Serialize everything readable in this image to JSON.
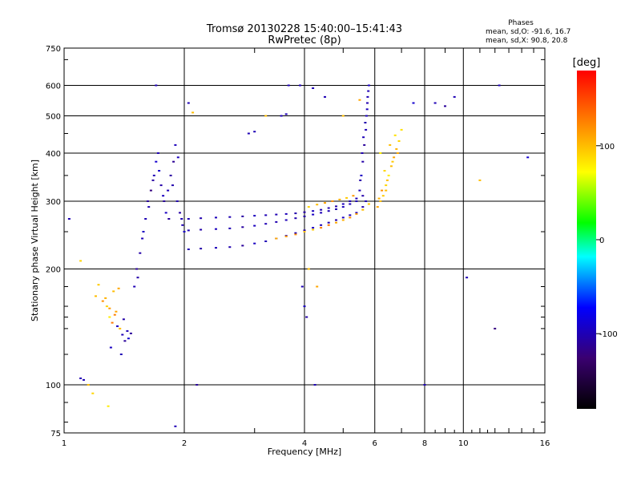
{
  "header": {
    "title_line1": "Tromsø 20130228 15:40:00–15:41:43",
    "title_line2": "RwPretec (8p)",
    "phases_label": "Phases",
    "stats_o": "mean, sd,O: -91.6, 16.7",
    "stats_x": "mean, sd,X:  90.8, 20.8"
  },
  "colorbar": {
    "label": "[deg]",
    "ticks": [
      "100",
      "0",
      "-100"
    ],
    "tick_values": [
      100,
      0,
      -100
    ],
    "range": [
      -180,
      180
    ]
  },
  "chart_data": {
    "type": "scatter",
    "title": "Tromsø 20130228 15:40:00–15:41:43",
    "subtitle": "RwPretec (8p)",
    "xlabel": "Frequency [MHz]",
    "ylabel": "Stationary phase Virtual Height [km]",
    "x_scale": "log2",
    "y_scale": "log",
    "xlim": [
      1,
      16
    ],
    "ylim": [
      75,
      750
    ],
    "x_ticks": [
      1,
      2,
      4,
      6,
      8,
      10,
      16
    ],
    "x_tick_labels": [
      "1",
      "2",
      "4",
      "6",
      "8",
      "10",
      "16"
    ],
    "y_ticks": [
      75,
      100,
      200,
      300,
      400,
      500,
      600,
      750
    ],
    "y_tick_labels": [
      "75",
      "100",
      "200",
      "300",
      "400",
      "500",
      "600",
      "750"
    ],
    "grid": true,
    "series": [
      {
        "x": [
          1.1,
          1.12,
          1.2,
          1.25,
          1.3,
          1.28,
          1.35,
          1.32,
          1.38,
          1.4,
          1.42,
          1.45,
          1.33,
          1.37,
          1.22,
          1.27,
          1.3,
          1.34,
          1.36,
          1.41,
          1.44,
          1.47,
          1.15,
          1.18,
          1.31,
          1.39,
          1.29
        ],
        "y": [
          104,
          103,
          170,
          165,
          150,
          160,
          155,
          145,
          140,
          135,
          130,
          132,
          175,
          178,
          182,
          168,
          158,
          152,
          142,
          148,
          138,
          136,
          100,
          95,
          125,
          120,
          88
        ],
        "phase": [
          -100,
          -100,
          100,
          120,
          80,
          90,
          110,
          130,
          100,
          -100,
          -110,
          -90,
          100,
          110,
          95,
          105,
          115,
          125,
          -95,
          -105,
          -100,
          -110,
          100,
          90,
          -95,
          -100,
          80
        ]
      },
      {
        "x": [
          1.5,
          1.52,
          1.55,
          1.58,
          1.6,
          1.62,
          1.65,
          1.68,
          1.7,
          1.72,
          1.75,
          1.78,
          1.8,
          1.82,
          1.85,
          1.88,
          1.9,
          1.92,
          1.95,
          1.98,
          2.0,
          1.53,
          1.57,
          1.63,
          1.67,
          1.73,
          1.77,
          1.83,
          1.87,
          1.93,
          1.97
        ],
        "y": [
          180,
          200,
          220,
          250,
          270,
          300,
          320,
          350,
          380,
          400,
          330,
          300,
          280,
          320,
          350,
          380,
          420,
          300,
          280,
          260,
          250,
          190,
          240,
          290,
          340,
          360,
          310,
          270,
          330,
          390,
          270
        ],
        "phase": [
          -100,
          -110,
          -105,
          -95,
          -100,
          -110,
          -120,
          -100,
          -90,
          -100,
          -105,
          -110,
          -95,
          -100,
          -108,
          -112,
          -98,
          -102,
          -106,
          -100,
          -95,
          -104,
          -99,
          -101,
          -107,
          -93,
          -96,
          -109,
          -103,
          -97,
          -100
        ]
      },
      {
        "x": [
          2.05,
          2.2,
          2.4,
          2.6,
          2.8,
          3.0,
          3.2,
          3.4,
          3.6,
          3.8,
          4.0,
          4.2,
          4.4,
          4.6,
          4.8,
          5.0,
          5.2,
          5.4,
          5.6,
          5.7
        ],
        "y": [
          225,
          226,
          227,
          228,
          230,
          233,
          236,
          240,
          244,
          248,
          252,
          256,
          260,
          264,
          268,
          272,
          276,
          280,
          290,
          300
        ],
        "phase": [
          -100,
          -105,
          -98,
          -102,
          -110,
          -95,
          -100,
          -103,
          -99,
          -101,
          -106,
          -94,
          -100,
          -102,
          -104,
          -96,
          -100,
          -98,
          -105,
          -100
        ]
      },
      {
        "x": [
          2.05,
          2.2,
          2.4,
          2.6,
          2.8,
          3.0,
          3.2,
          3.4,
          3.6,
          3.8,
          4.0,
          4.2,
          4.4,
          4.6,
          4.8,
          5.0,
          5.2,
          5.4,
          5.6
        ],
        "y": [
          252,
          253,
          254,
          255,
          257,
          259,
          262,
          265,
          268,
          271,
          274,
          277,
          280,
          283,
          286,
          290,
          295,
          300,
          310
        ],
        "phase": [
          -100,
          -104,
          -97,
          -101,
          -108,
          -96,
          -100,
          -102,
          -99,
          -103,
          -105,
          -95,
          -100,
          -101,
          -103,
          -97,
          -100,
          -99,
          -104
        ]
      },
      {
        "x": [
          2.05,
          2.2,
          2.4,
          2.6,
          2.8,
          3.0,
          3.2,
          3.4,
          3.6,
          3.8,
          4.0,
          4.2,
          4.4,
          4.6,
          4.8,
          5.0,
          5.2,
          5.4
        ],
        "y": [
          270,
          271,
          272,
          273,
          274,
          275,
          276,
          277,
          278,
          279,
          281,
          283,
          285,
          288,
          291,
          295,
          300,
          305
        ],
        "phase": [
          -100,
          -103,
          -98,
          -101,
          -107,
          -97,
          -100,
          -101,
          -99,
          -104,
          -106,
          -96,
          -100,
          -102,
          -104,
          -98,
          -100,
          -100
        ]
      },
      {
        "x": [
          3.4,
          3.6,
          3.8,
          4.0,
          4.2,
          4.4,
          4.6,
          4.8,
          5.0,
          5.2,
          5.4,
          5.6,
          5.8,
          4.1,
          4.3,
          4.5,
          4.7,
          4.9,
          5.1,
          5.3
        ],
        "y": [
          240,
          243,
          246,
          250,
          253,
          256,
          260,
          264,
          268,
          272,
          278,
          285,
          295,
          290,
          294,
          297,
          300,
          303,
          306,
          310
        ],
        "phase": [
          110,
          115,
          120,
          100,
          95,
          125,
          130,
          110,
          105,
          120,
          115,
          100,
          95,
          90,
          100,
          110,
          120,
          105,
          95,
          115
        ]
      },
      {
        "x": [
          5.5,
          5.55,
          5.6,
          5.65,
          5.7,
          5.72,
          5.75,
          5.78,
          5.8,
          5.52,
          5.58,
          5.62,
          5.68,
          5.74,
          5.76
        ],
        "y": [
          320,
          350,
          380,
          420,
          460,
          500,
          540,
          580,
          600,
          340,
          400,
          440,
          480,
          520,
          560
        ],
        "phase": [
          -100,
          -95,
          -105,
          -110,
          -100,
          -98,
          -102,
          -100,
          -96,
          -104,
          -101,
          -99,
          -103,
          -97,
          -100
        ]
      },
      {
        "x": [
          6.1,
          6.2,
          6.3,
          6.4,
          6.5,
          6.6,
          6.7,
          6.8,
          6.9,
          7.0,
          6.25,
          6.45,
          6.65,
          6.85,
          6.15,
          6.35,
          6.55,
          6.75
        ],
        "y": [
          290,
          300,
          310,
          330,
          350,
          370,
          390,
          410,
          430,
          460,
          320,
          340,
          380,
          400,
          305,
          360,
          420,
          445
        ],
        "phase": [
          110,
          100,
          95,
          90,
          80,
          100,
          110,
          105,
          90,
          85,
          120,
          100,
          95,
          110,
          105,
          90,
          100,
          85
        ]
      },
      {
        "x": [
          1.03,
          1.1,
          1.7,
          2.05,
          2.1,
          3.5,
          3.9,
          3.95,
          4.0,
          4.05,
          4.1,
          4.3,
          4.5,
          5.0,
          5.5,
          6.2,
          6.4,
          7.5,
          8.0,
          8.5,
          9.0,
          9.5,
          10.2,
          11.0,
          12.0,
          12.3,
          14.5,
          1.9,
          2.15,
          3.0,
          2.9,
          3.2,
          3.6,
          3.65,
          4.2,
          4.25
        ],
        "y": [
          270,
          210,
          600,
          540,
          510,
          500,
          600,
          180,
          160,
          150,
          200,
          180,
          560,
          500,
          550,
          400,
          320,
          540,
          100,
          540,
          530,
          560,
          190,
          340,
          140,
          600,
          390,
          78,
          100,
          455,
          450,
          500,
          505,
          600,
          590,
          100
        ],
        "phase": [
          -100,
          90,
          -100,
          -100,
          100,
          -100,
          -100,
          -100,
          -95,
          -105,
          100,
          110,
          -100,
          100,
          110,
          80,
          100,
          -90,
          -100,
          -100,
          -110,
          -100,
          -100,
          100,
          -120,
          -100,
          -90,
          -100,
          -110,
          -100,
          -100,
          100,
          -100,
          -100,
          -100,
          -100
        ]
      }
    ]
  }
}
